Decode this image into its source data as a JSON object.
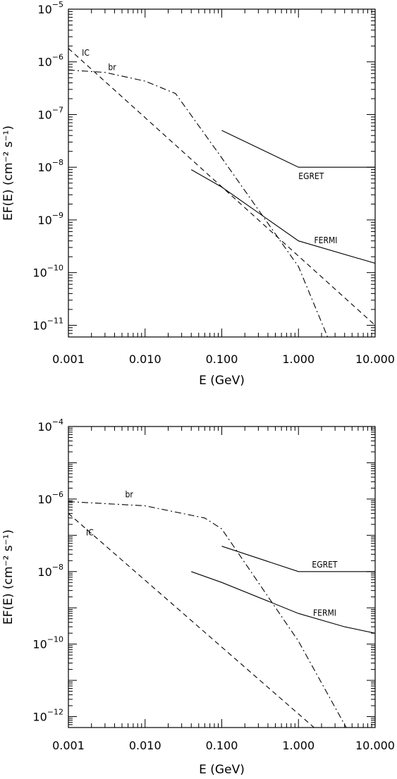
{
  "chart_data": [
    {
      "type": "line",
      "xlabel": "E (GeV)",
      "ylabel": "EF(E) (cm⁻² s⁻¹)",
      "xscale": "log",
      "yscale": "log",
      "xlim": [
        0.001,
        10
      ],
      "ylim": [
        6e-12,
        1e-05
      ],
      "x_ticks": [
        {
          "value": 0.001,
          "label": "0.001"
        },
        {
          "value": 0.01,
          "label": "0.010"
        },
        {
          "value": 0.1,
          "label": "0.100"
        },
        {
          "value": 1,
          "label": "1.000"
        },
        {
          "value": 10,
          "label": "10.000"
        }
      ],
      "y_ticks": [
        {
          "value": 1e-05,
          "base": "10",
          "exp": "−5"
        },
        {
          "value": 1e-06,
          "base": "10",
          "exp": "−6"
        },
        {
          "value": 1e-07,
          "base": "10",
          "exp": "−7"
        },
        {
          "value": 1e-08,
          "base": "10",
          "exp": "−8"
        },
        {
          "value": 1e-09,
          "base": "10",
          "exp": "−9"
        },
        {
          "value": 1e-10,
          "base": "10",
          "exp": "−10"
        },
        {
          "value": 1e-11,
          "base": "10",
          "exp": "−11"
        }
      ],
      "series": [
        {
          "name": "IC",
          "style": "dashed",
          "x": [
            0.001,
            10
          ],
          "y": [
            1.8e-06,
            1e-11
          ],
          "label_at": [
            0.0015,
            1.3e-06
          ]
        },
        {
          "name": "br",
          "style": "dashdot",
          "x": [
            0.001,
            0.003,
            0.01,
            0.025,
            0.1,
            1,
            2.4
          ],
          "y": [
            7e-07,
            6.3e-07,
            4.3e-07,
            2.5e-07,
            1.5e-08,
            1.3e-10,
            6e-12
          ],
          "label_at": [
            0.0033,
            7e-07
          ]
        },
        {
          "name": "EGRET",
          "style": "solid",
          "x": [
            0.1,
            1,
            10
          ],
          "y": [
            5e-08,
            1e-08,
            1e-08
          ],
          "label_at": [
            1.0,
            6e-09
          ]
        },
        {
          "name": "FERMI",
          "style": "solid",
          "x": [
            0.04,
            0.1,
            1,
            10
          ],
          "y": [
            9e-09,
            4.2e-09,
            4e-10,
            1.5e-10
          ],
          "label_at": [
            1.6,
            3.6e-10
          ]
        }
      ],
      "grid": false
    },
    {
      "type": "line",
      "xlabel": "E (GeV)",
      "ylabel": "EF(E) (cm⁻² s⁻¹)",
      "xscale": "log",
      "yscale": "log",
      "xlim": [
        0.001,
        10
      ],
      "ylim": [
        5e-13,
        0.0001
      ],
      "x_ticks": [
        {
          "value": 0.001,
          "label": "0.001"
        },
        {
          "value": 0.01,
          "label": "0.010"
        },
        {
          "value": 0.1,
          "label": "0.100"
        },
        {
          "value": 1,
          "label": "1.000"
        },
        {
          "value": 10,
          "label": "10.000"
        }
      ],
      "y_ticks": [
        {
          "value": 0.0001,
          "base": "10",
          "exp": "−4"
        },
        {
          "value": 1e-06,
          "base": "10",
          "exp": "−6"
        },
        {
          "value": 1e-08,
          "base": "10",
          "exp": "−8"
        },
        {
          "value": 1e-10,
          "base": "10",
          "exp": "−10"
        },
        {
          "value": 1e-12,
          "base": "10",
          "exp": "−12"
        }
      ],
      "series": [
        {
          "name": "IC",
          "style": "dashed",
          "x": [
            0.001,
            1.6
          ],
          "y": [
            4e-07,
            5e-13
          ],
          "label_at": [
            0.0017,
            1e-07
          ]
        },
        {
          "name": "br",
          "style": "dashdot",
          "x": [
            0.001,
            0.01,
            0.06,
            0.1,
            1,
            4.2
          ],
          "y": [
            8.5e-07,
            6.5e-07,
            3e-07,
            1.5e-07,
            1.2e-10,
            5e-13
          ],
          "label_at": [
            0.0055,
            1.1e-06
          ]
        },
        {
          "name": "EGRET",
          "style": "solid",
          "x": [
            0.1,
            1,
            10
          ],
          "y": [
            5e-08,
            1e-08,
            1e-08
          ],
          "label_at": [
            1.5,
            1.3e-08
          ]
        },
        {
          "name": "FERMI",
          "style": "solid",
          "x": [
            0.04,
            0.1,
            1,
            4,
            10
          ],
          "y": [
            1e-08,
            5e-09,
            7e-10,
            3e-10,
            2e-10
          ],
          "label_at": [
            1.55,
            6e-10
          ]
        }
      ],
      "grid": false
    }
  ]
}
